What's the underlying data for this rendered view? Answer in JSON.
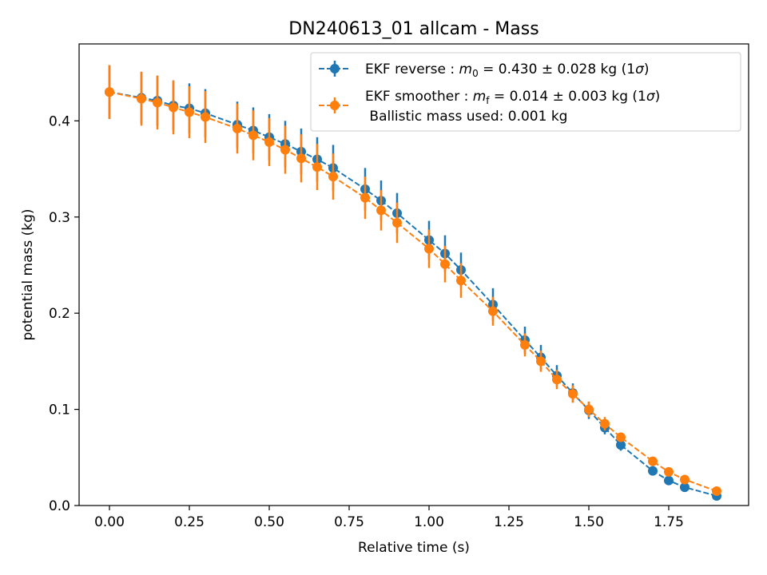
{
  "chart_data": {
    "type": "scatter",
    "title": "DN240613_01 allcam - Mass",
    "xlabel": "Relative time (s)",
    "ylabel": "potential mass (kg)",
    "xlim": [
      -0.095,
      2.0
    ],
    "ylim": [
      0.0,
      0.48
    ],
    "x_ticks": [
      0.0,
      0.25,
      0.5,
      0.75,
      1.0,
      1.25,
      1.5,
      1.75
    ],
    "x_tick_labels": [
      "0.00",
      "0.25",
      "0.50",
      "0.75",
      "1.00",
      "1.25",
      "1.50",
      "1.75"
    ],
    "y_ticks": [
      0.0,
      0.1,
      0.2,
      0.3,
      0.4
    ],
    "y_tick_labels": [
      "0.0",
      "0.1",
      "0.2",
      "0.3",
      "0.4"
    ],
    "grid": false,
    "legend_position": "top-right",
    "legend": {
      "entry1": {
        "prefix": "EKF reverse : ",
        "sym": "m",
        "sub": "0",
        "suffix": " =  0.430 ± 0.028 kg (1",
        "sigma": "σ",
        "close": ")"
      },
      "entry2": {
        "prefix": "EKF smoother : ",
        "sym": "m",
        "sub": "f",
        "suffix": " =  0.014 ± 0.003 kg (1",
        "sigma": "σ",
        "close": ")"
      },
      "entry2_line2": " Ballistic mass used: 0.001 kg"
    },
    "series": [
      {
        "color": "#1f77b4",
        "style": "dashed-line-with-markers-errorbars",
        "points": [
          {
            "x": 0.0,
            "y": 0.43,
            "err": 0.028
          },
          {
            "x": 0.1,
            "y": 0.424,
            "err": 0.027
          },
          {
            "x": 0.15,
            "y": 0.421,
            "err": 0.026
          },
          {
            "x": 0.2,
            "y": 0.416,
            "err": 0.026
          },
          {
            "x": 0.25,
            "y": 0.413,
            "err": 0.026
          },
          {
            "x": 0.3,
            "y": 0.408,
            "err": 0.025
          },
          {
            "x": 0.4,
            "y": 0.396,
            "err": 0.024
          },
          {
            "x": 0.45,
            "y": 0.39,
            "err": 0.024
          },
          {
            "x": 0.5,
            "y": 0.383,
            "err": 0.024
          },
          {
            "x": 0.55,
            "y": 0.376,
            "err": 0.024
          },
          {
            "x": 0.6,
            "y": 0.368,
            "err": 0.024
          },
          {
            "x": 0.65,
            "y": 0.36,
            "err": 0.023
          },
          {
            "x": 0.7,
            "y": 0.351,
            "err": 0.024
          },
          {
            "x": 0.8,
            "y": 0.329,
            "err": 0.022
          },
          {
            "x": 0.85,
            "y": 0.317,
            "err": 0.021
          },
          {
            "x": 0.9,
            "y": 0.304,
            "err": 0.021
          },
          {
            "x": 1.0,
            "y": 0.276,
            "err": 0.02
          },
          {
            "x": 1.05,
            "y": 0.262,
            "err": 0.019
          },
          {
            "x": 1.1,
            "y": 0.245,
            "err": 0.018
          },
          {
            "x": 1.2,
            "y": 0.209,
            "err": 0.017
          },
          {
            "x": 1.3,
            "y": 0.172,
            "err": 0.014
          },
          {
            "x": 1.35,
            "y": 0.154,
            "err": 0.013
          },
          {
            "x": 1.4,
            "y": 0.135,
            "err": 0.011
          },
          {
            "x": 1.45,
            "y": 0.117,
            "err": 0.01
          },
          {
            "x": 1.5,
            "y": 0.099,
            "err": 0.009
          },
          {
            "x": 1.55,
            "y": 0.081,
            "err": 0.007
          },
          {
            "x": 1.6,
            "y": 0.063,
            "err": 0.006
          },
          {
            "x": 1.7,
            "y": 0.036,
            "err": 0.004
          },
          {
            "x": 1.75,
            "y": 0.026,
            "err": 0.003
          },
          {
            "x": 1.8,
            "y": 0.019,
            "err": 0.003
          },
          {
            "x": 1.9,
            "y": 0.01,
            "err": 0.002
          }
        ]
      },
      {
        "color": "#ff7f0e",
        "style": "dashed-line-with-markers-errorbars",
        "points": [
          {
            "x": 0.0,
            "y": 0.43,
            "err": 0.028
          },
          {
            "x": 0.1,
            "y": 0.423,
            "err": 0.028
          },
          {
            "x": 0.15,
            "y": 0.419,
            "err": 0.028
          },
          {
            "x": 0.2,
            "y": 0.414,
            "err": 0.028
          },
          {
            "x": 0.25,
            "y": 0.409,
            "err": 0.027
          },
          {
            "x": 0.3,
            "y": 0.404,
            "err": 0.027
          },
          {
            "x": 0.4,
            "y": 0.392,
            "err": 0.026
          },
          {
            "x": 0.45,
            "y": 0.385,
            "err": 0.026
          },
          {
            "x": 0.5,
            "y": 0.378,
            "err": 0.025
          },
          {
            "x": 0.55,
            "y": 0.37,
            "err": 0.025
          },
          {
            "x": 0.6,
            "y": 0.361,
            "err": 0.025
          },
          {
            "x": 0.65,
            "y": 0.352,
            "err": 0.024
          },
          {
            "x": 0.7,
            "y": 0.342,
            "err": 0.024
          },
          {
            "x": 0.8,
            "y": 0.32,
            "err": 0.022
          },
          {
            "x": 0.85,
            "y": 0.307,
            "err": 0.021
          },
          {
            "x": 0.9,
            "y": 0.294,
            "err": 0.021
          },
          {
            "x": 1.0,
            "y": 0.267,
            "err": 0.02
          },
          {
            "x": 1.05,
            "y": 0.251,
            "err": 0.019
          },
          {
            "x": 1.1,
            "y": 0.234,
            "err": 0.018
          },
          {
            "x": 1.2,
            "y": 0.202,
            "err": 0.015
          },
          {
            "x": 1.3,
            "y": 0.167,
            "err": 0.012
          },
          {
            "x": 1.35,
            "y": 0.15,
            "err": 0.011
          },
          {
            "x": 1.4,
            "y": 0.131,
            "err": 0.01
          },
          {
            "x": 1.45,
            "y": 0.116,
            "err": 0.009
          },
          {
            "x": 1.5,
            "y": 0.1,
            "err": 0.008
          },
          {
            "x": 1.55,
            "y": 0.085,
            "err": 0.007
          },
          {
            "x": 1.6,
            "y": 0.071,
            "err": 0.005
          },
          {
            "x": 1.7,
            "y": 0.046,
            "err": 0.003
          },
          {
            "x": 1.75,
            "y": 0.035,
            "err": 0.003
          },
          {
            "x": 1.8,
            "y": 0.027,
            "err": 0.003
          },
          {
            "x": 1.9,
            "y": 0.015,
            "err": 0.003
          }
        ]
      }
    ]
  }
}
